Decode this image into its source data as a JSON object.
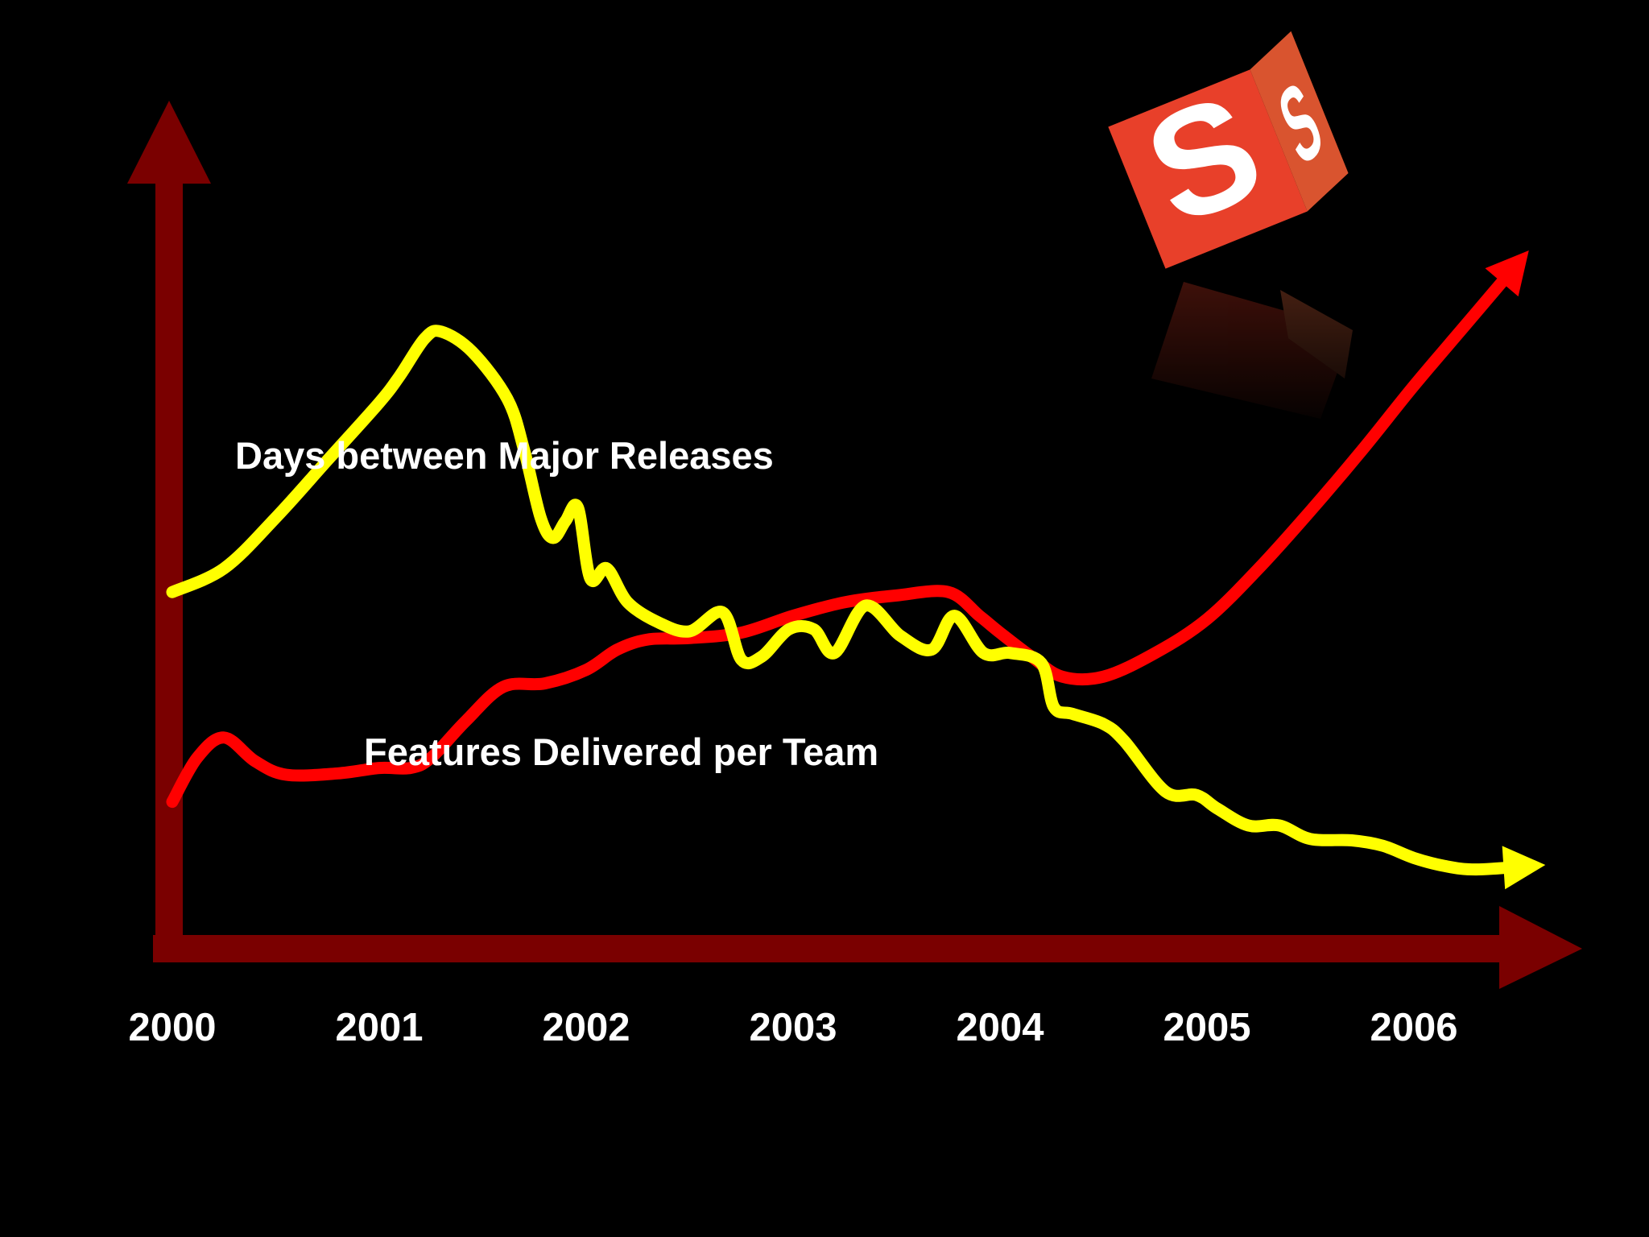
{
  "chart_data": {
    "type": "line",
    "title": "",
    "xlabel": "",
    "ylabel": "",
    "categories": [
      "2000",
      "2001",
      "2002",
      "2003",
      "2004",
      "2005",
      "2006"
    ],
    "xlim": [
      2000,
      2006.6
    ],
    "ylim": [
      0,
      100
    ],
    "grid": false,
    "legend": "inline labels",
    "series": [
      {
        "name": "Days between Major Releases",
        "color": "#ffff00",
        "ending": "arrow",
        "x": [
          2000.0,
          2000.25,
          2000.5,
          2000.75,
          2001.0,
          2001.1,
          2001.22,
          2001.3,
          2001.45,
          2001.62,
          2001.7,
          2001.78,
          2001.84,
          2001.9,
          2001.96,
          2002.02,
          2002.1,
          2002.2,
          2002.35,
          2002.5,
          2002.66,
          2002.75,
          2002.85,
          2002.98,
          2003.1,
          2003.2,
          2003.35,
          2003.52,
          2003.67,
          2003.78,
          2003.92,
          2004.05,
          2004.2,
          2004.26,
          2004.35,
          2004.5,
          2004.6,
          2004.8,
          2004.95,
          2005.05,
          2005.2,
          2005.35,
          2005.5,
          2005.7,
          2005.85,
          2006.0,
          2006.15,
          2006.3,
          2006.55
        ],
        "values": [
          47.0,
          50.5,
          58.0,
          66.5,
          75.0,
          79.0,
          84.5,
          85.5,
          82.5,
          75.5,
          68.0,
          58.0,
          55.0,
          57.5,
          59.5,
          49.0,
          50.5,
          45.5,
          42.5,
          41.2,
          44.0,
          37.0,
          37.5,
          41.5,
          41.5,
          38.0,
          45.0,
          40.5,
          38.5,
          43.5,
          38.0,
          38.0,
          36.5,
          30.0,
          29.0,
          27.5,
          25.0,
          17.5,
          17.0,
          15.0,
          12.5,
          12.5,
          10.5,
          10.3,
          9.5,
          7.7,
          6.5,
          6.0,
          6.5
        ]
      },
      {
        "name": "Features Delivered per Team",
        "color": "#ff0000",
        "ending": "arrow",
        "x": [
          2000.0,
          2000.12,
          2000.25,
          2000.4,
          2000.55,
          2000.8,
          2001.0,
          2001.15,
          2001.25,
          2001.42,
          2001.6,
          2001.8,
          2002.0,
          2002.15,
          2002.3,
          2002.5,
          2002.75,
          2003.0,
          2003.25,
          2003.5,
          2003.75,
          2003.9,
          2004.0,
          2004.15,
          2004.3,
          2004.5,
          2004.75,
          2005.0,
          2005.25,
          2005.5,
          2005.75,
          2006.0,
          2006.25,
          2006.5
        ],
        "values": [
          16.0,
          22.5,
          25.5,
          22.0,
          20.0,
          20.2,
          21.0,
          21.0,
          22.5,
          28.0,
          33.0,
          33.5,
          35.5,
          38.5,
          40.0,
          40.2,
          41.0,
          43.5,
          45.5,
          46.5,
          47.0,
          43.5,
          41.0,
          37.5,
          34.5,
          34.5,
          38.0,
          43.0,
          50.5,
          59.0,
          68.0,
          77.5,
          86.5,
          95.5
        ]
      }
    ],
    "x_axis": {
      "color": "#7a0000",
      "arrow": true
    },
    "y_axis": {
      "color": "#7a0000",
      "arrow": true
    }
  },
  "logo": {
    "name": "red-s-cube-logo",
    "letter": "S",
    "face_color": "#e8402a",
    "side_color": "#d9542f"
  }
}
